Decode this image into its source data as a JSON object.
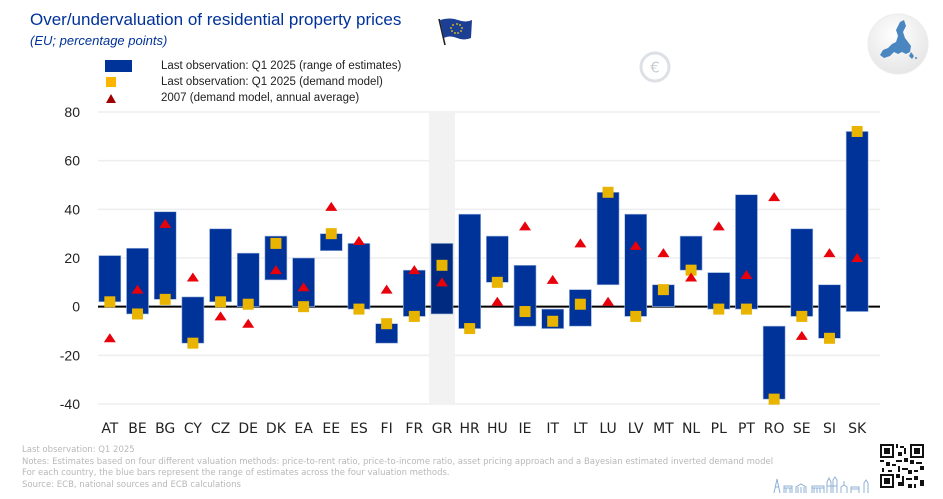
{
  "header": {
    "title": "Over/undervaluation of residential property prices",
    "subtitle": "(EU; percentage points)"
  },
  "icons": {
    "flag": "eu-flag-icon",
    "euro": "euro-coin-icon",
    "map": "eu-map-icon",
    "skyline": "city-skyline-icon",
    "qr": "qr-code-icon"
  },
  "legend": [
    {
      "label": "Last observation: Q1 2025 (range of estimates)",
      "marker": "bar",
      "color": "#003399"
    },
    {
      "label": "Last observation: Q1 2025 (demand model)",
      "marker": "square",
      "color": "#FFB400"
    },
    {
      "label": "2007 (demand model, annual average)",
      "marker": "triangle",
      "color": "#A00000"
    }
  ],
  "footer": {
    "line1": "Last observation: Q1 2025",
    "line2": "Notes: Estimates based on four different valuation methods: price-to-rent ratio, price-to-income ratio, asset pricing approach and a Bayesian estimated inverted demand model",
    "line3": "For each country, the blue bars represent the range of estimates across the four valuation methods.",
    "line4": "Source: ECB, national sources and ECB calculations"
  },
  "chart_data": {
    "type": "bar",
    "subtype": "floating-range-with-markers",
    "title": "Over/undervaluation of residential property prices",
    "subtitle": "(EU; percentage points)",
    "xlabel": "",
    "ylabel": "",
    "ylim": [
      -40,
      80
    ],
    "yticks": [
      -40,
      -20,
      0,
      20,
      40,
      60,
      80
    ],
    "grid": true,
    "legend_position": "top-left",
    "highlighted_category": "GR",
    "colors": {
      "range": "#003399",
      "range_highlight": "#002A80",
      "demand": "#E8B400",
      "y2007": "#E8000A",
      "highlight_bg": "#F2F2F2"
    },
    "categories": [
      "AT",
      "BE",
      "BG",
      "CY",
      "CZ",
      "DE",
      "DK",
      "EA",
      "EE",
      "ES",
      "FI",
      "FR",
      "GR",
      "HR",
      "HU",
      "IE",
      "IT",
      "LT",
      "LU",
      "LV",
      "MT",
      "NL",
      "PL",
      "PT",
      "RO",
      "SE",
      "SI",
      "SK"
    ],
    "series": [
      {
        "name": "Last observation: Q1 2025 (range of estimates) - low",
        "values": [
          2,
          -3,
          3,
          -15,
          2,
          0,
          11,
          0,
          23,
          -1,
          -15,
          -4,
          -3,
          -9,
          10,
          -8,
          -9,
          -8,
          9,
          -4,
          0,
          15,
          -1,
          -1,
          -38,
          -4,
          -13,
          -2
        ]
      },
      {
        "name": "Last observation: Q1 2025 (range of estimates) - high",
        "values": [
          21,
          24,
          39,
          4,
          32,
          22,
          29,
          20,
          30,
          26,
          -7,
          15,
          26,
          38,
          29,
          17,
          -1,
          7,
          47,
          38,
          9,
          29,
          14,
          46,
          -8,
          32,
          9,
          72
        ]
      },
      {
        "name": "Last observation: Q1 2025 (demand model)",
        "values": [
          2,
          -3,
          3,
          -15,
          2,
          1,
          26,
          0,
          30,
          -1,
          -7,
          -4,
          17,
          -9,
          10,
          -2,
          -6,
          1,
          47,
          -4,
          7,
          15,
          -1,
          -1,
          -38,
          -4,
          -13,
          72
        ]
      },
      {
        "name": "2007 (demand model, annual average)",
        "values": [
          -13,
          7,
          34,
          12,
          -4,
          -7,
          15,
          8,
          41,
          27,
          7,
          15,
          10,
          null,
          2,
          33,
          11,
          26,
          2,
          25,
          22,
          12,
          33,
          13,
          45,
          -12,
          22,
          20
        ]
      }
    ]
  }
}
